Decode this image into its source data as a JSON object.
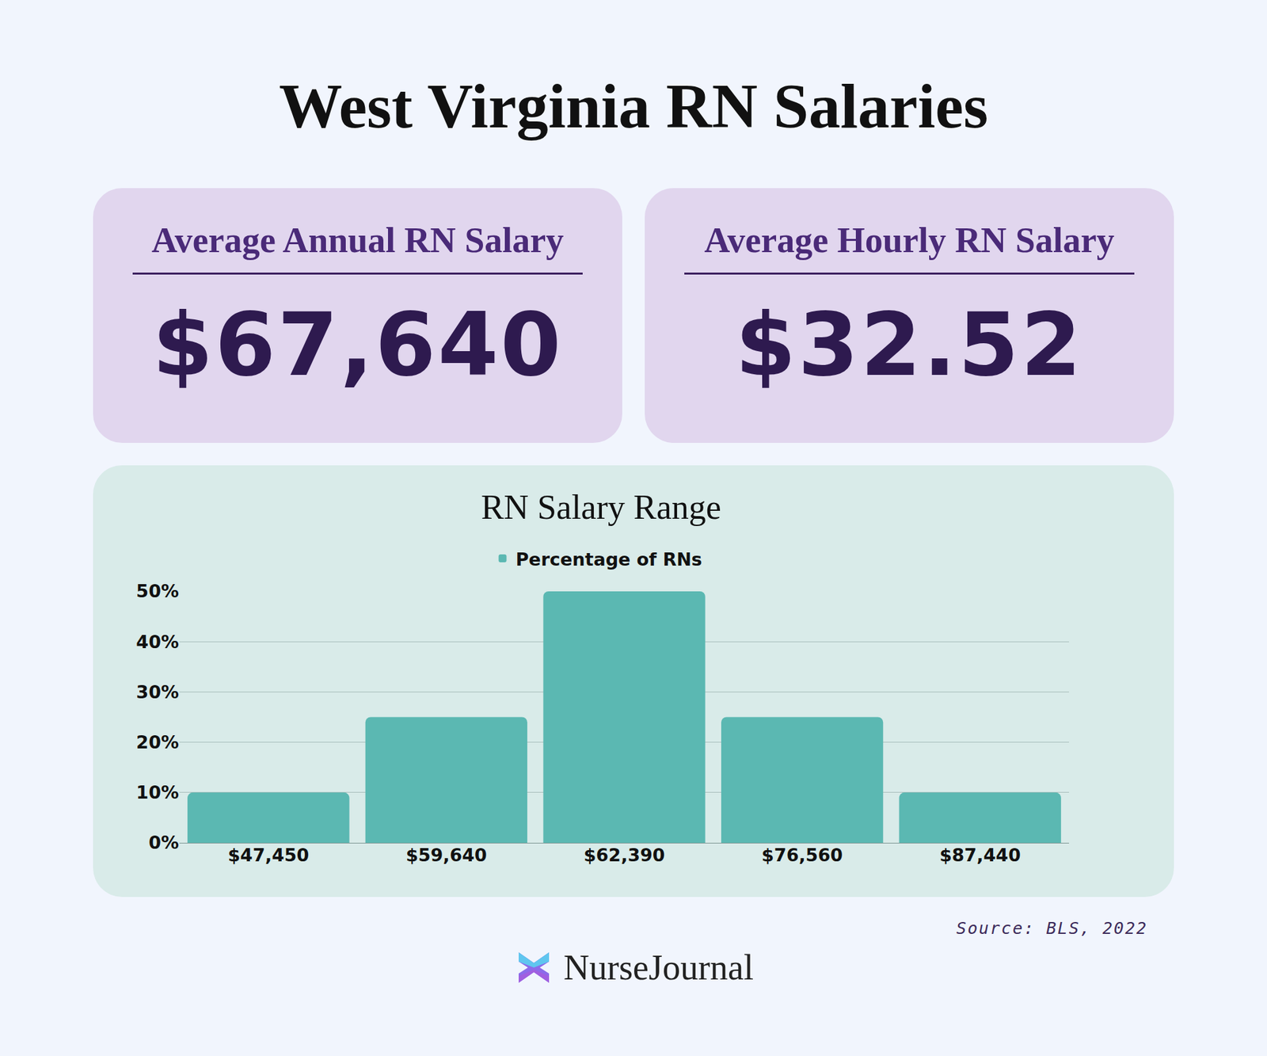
{
  "title": "West Virginia RN Salaries",
  "cards": [
    {
      "label": "Average Annual RN Salary",
      "value": "$67,640"
    },
    {
      "label": "Average Hourly RN Salary",
      "value": "$32.52"
    }
  ],
  "chart_data": {
    "type": "bar",
    "title": "RN Salary Range",
    "categories": [
      "$47,450",
      "$59,640",
      "$62,390",
      "$76,560",
      "$87,440"
    ],
    "series": [
      {
        "name": "Percentage of RNs",
        "color": "#5bb8b2",
        "values": [
          10,
          25,
          50,
          25,
          10
        ]
      }
    ],
    "ylim": [
      0,
      50
    ],
    "yticks": [
      {
        "value": 0,
        "label": "0%"
      },
      {
        "value": 10,
        "label": "10%"
      },
      {
        "value": 20,
        "label": "20%"
      },
      {
        "value": 30,
        "label": "30%"
      },
      {
        "value": 40,
        "label": "40%"
      },
      {
        "value": 50,
        "label": "50%"
      }
    ],
    "grid": true,
    "legend": "top"
  },
  "source": "Source: BLS, 2022",
  "brand": "NurseJournal"
}
